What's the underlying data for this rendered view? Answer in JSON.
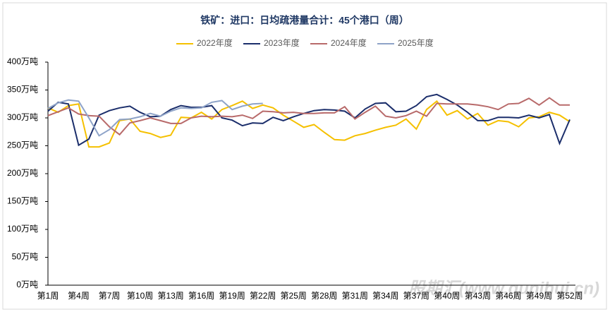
{
  "chart_data": {
    "type": "line",
    "title": "铁矿：进口：日均疏港量合计：45个港口（周）",
    "watermark": "股期汇(www.qunihui.cn)",
    "categories": [
      "第1周",
      null,
      null,
      "第4周",
      null,
      null,
      "第7周",
      null,
      null,
      "第10周",
      null,
      null,
      "第13周",
      null,
      null,
      "第16周",
      null,
      null,
      "第19周",
      null,
      null,
      "第22周",
      null,
      null,
      "第25周",
      null,
      null,
      "第28周",
      null,
      null,
      "第31周",
      null,
      null,
      "第34周",
      null,
      null,
      "第37周",
      null,
      null,
      "第40周",
      null,
      null,
      "第43周",
      null,
      null,
      "第46周",
      null,
      null,
      "第49周",
      null,
      null,
      "第52周"
    ],
    "ylim": [
      0,
      400
    ],
    "yticks": [
      {
        "value": 0,
        "label": "0万吨"
      },
      {
        "value": 50,
        "label": "50万吨"
      },
      {
        "value": 100,
        "label": "100万吨"
      },
      {
        "value": 150,
        "label": "150万吨"
      },
      {
        "value": 200,
        "label": "200万吨"
      },
      {
        "value": 250,
        "label": "250万吨"
      },
      {
        "value": 300,
        "label": "300万吨"
      },
      {
        "value": 350,
        "label": "350万吨"
      },
      {
        "value": 400,
        "label": "400万吨"
      }
    ],
    "legend": "top",
    "series": [
      {
        "name": "2022年度",
        "color": "#f5c000",
        "values": [
          318,
          310,
          322,
          325,
          248,
          248,
          255,
          295,
          298,
          276,
          272,
          265,
          269,
          301,
          300,
          310,
          298,
          315,
          322,
          330,
          317,
          323,
          318,
          305,
          294,
          283,
          288,
          274,
          261,
          260,
          268,
          272,
          278,
          283,
          287,
          298,
          280,
          315,
          330,
          305,
          313,
          298,
          308,
          287,
          295,
          293,
          284,
          300,
          302,
          310,
          305,
          293
        ]
      },
      {
        "name": "2023年度",
        "color": "#1b2e6b",
        "values": [
          312,
          328,
          325,
          251,
          262,
          305,
          313,
          318,
          321,
          310,
          302,
          303,
          315,
          322,
          319,
          319,
          322,
          300,
          296,
          286,
          291,
          290,
          301,
          295,
          302,
          308,
          313,
          315,
          314,
          312,
          300,
          316,
          326,
          327,
          311,
          312,
          322,
          338,
          342,
          333,
          323,
          310,
          295,
          295,
          301,
          301,
          300,
          305,
          300,
          306,
          254,
          297
        ]
      },
      {
        "name": "2024年度",
        "color": "#b86a6a",
        "values": [
          304,
          311,
          318,
          307,
          304,
          303,
          284,
          270,
          291,
          295,
          300,
          295,
          290,
          290,
          300,
          303,
          302,
          303,
          302,
          305,
          299,
          312,
          311,
          309,
          310,
          308,
          308,
          309,
          309,
          320,
          298,
          310,
          321,
          303,
          300,
          304,
          312,
          303,
          326,
          325,
          325,
          325,
          323,
          320,
          315,
          325,
          326,
          335,
          323,
          336,
          323,
          323
        ]
      },
      {
        "name": "2025年度",
        "color": "#8ea3c8",
        "values": [
          317,
          327,
          332,
          330,
          300,
          268,
          279,
          297,
          298,
          302,
          308,
          303,
          312,
          318,
          317,
          318,
          328,
          331,
          315,
          321,
          325,
          326,
          null,
          null,
          null,
          null,
          null,
          null,
          null,
          null,
          null,
          null,
          null,
          null,
          null,
          null,
          null,
          null,
          null,
          null,
          null,
          null,
          null,
          null,
          null,
          null,
          null,
          null,
          null,
          null,
          null,
          null
        ]
      }
    ]
  }
}
